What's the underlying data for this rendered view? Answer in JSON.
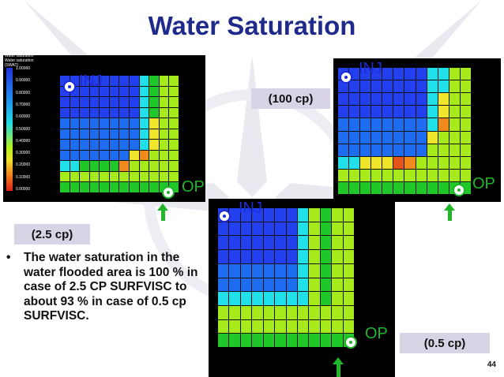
{
  "title": "Water Saturation",
  "legend": {
    "title_line1": "Water saturation",
    "title_line2": "Water saturation (SWAT)",
    "ticks": [
      "1.00000",
      "0.90000",
      "0.80000",
      "0.70000",
      "0.60000",
      "0.50000",
      "0.40000",
      "0.30000",
      "0.20000",
      "0.10000",
      "0.00000"
    ]
  },
  "panels": {
    "left": {
      "inj": "INJ",
      "op": "OP",
      "label": "(2.5 cp)"
    },
    "right": {
      "inj": "INJ",
      "op": "OP",
      "label": "(100 cp)"
    },
    "bottom": {
      "inj": "INJ",
      "op": "OP",
      "label": "(0.5 cp)"
    }
  },
  "bullet": {
    "marker": "•",
    "text": "The water saturation in the water flooded area  is 100 %  in case of 2.5 CP SURFVISC to about 93 % in case of 0.5 cp SURFVISC."
  },
  "page_number": "44",
  "colors": {
    "title": "#1f2a8c",
    "inj_well": "#1e2bd8",
    "op_well": "#1fb62a",
    "label_bg": "#d9d3e6"
  },
  "grids": {
    "left": [
      "BBBBBBBBCGLL",
      "BBBBBBBBCGLL",
      "BBBBBBBBCGLL",
      "BBBBBBBBCGLL",
      "BBBBBBBBCYLL",
      "BBBBBBBBCYLL",
      "BBBBBBBBCYLL",
      "BBBBBBBYOLLL",
      "CCGGGGOLLLLL",
      "LLLLLLLLLLLL",
      "GGGGGGGGGGGG"
    ],
    "right": [
      "BBBBBBBBCCLL",
      "BBBBBBBBCCLL",
      "BBBBBBBBCYLL",
      "BBBBBBBBCYLL",
      "BBBBBBBBCOLL",
      "BBBBBBBBYLLL",
      "BBBBBBBBLLLL",
      "CCYYYROLLLLL",
      "LLLLLLLLLLLL",
      "GGGGGGGGGGGG"
    ],
    "bottom": [
      "BBBBBBBCLGLL",
      "BBBBBBBCLGLL",
      "BBBBBBBCLGLL",
      "BBBBBBBCLGLL",
      "BBBBBBBCLGLL",
      "BBBBBBBCLGLL",
      "CCCCCCCCLGLL",
      "LLLLLLLLLLLL",
      "LLLLLLLLLLLL",
      "GGGGGGGGGGGG"
    ]
  }
}
